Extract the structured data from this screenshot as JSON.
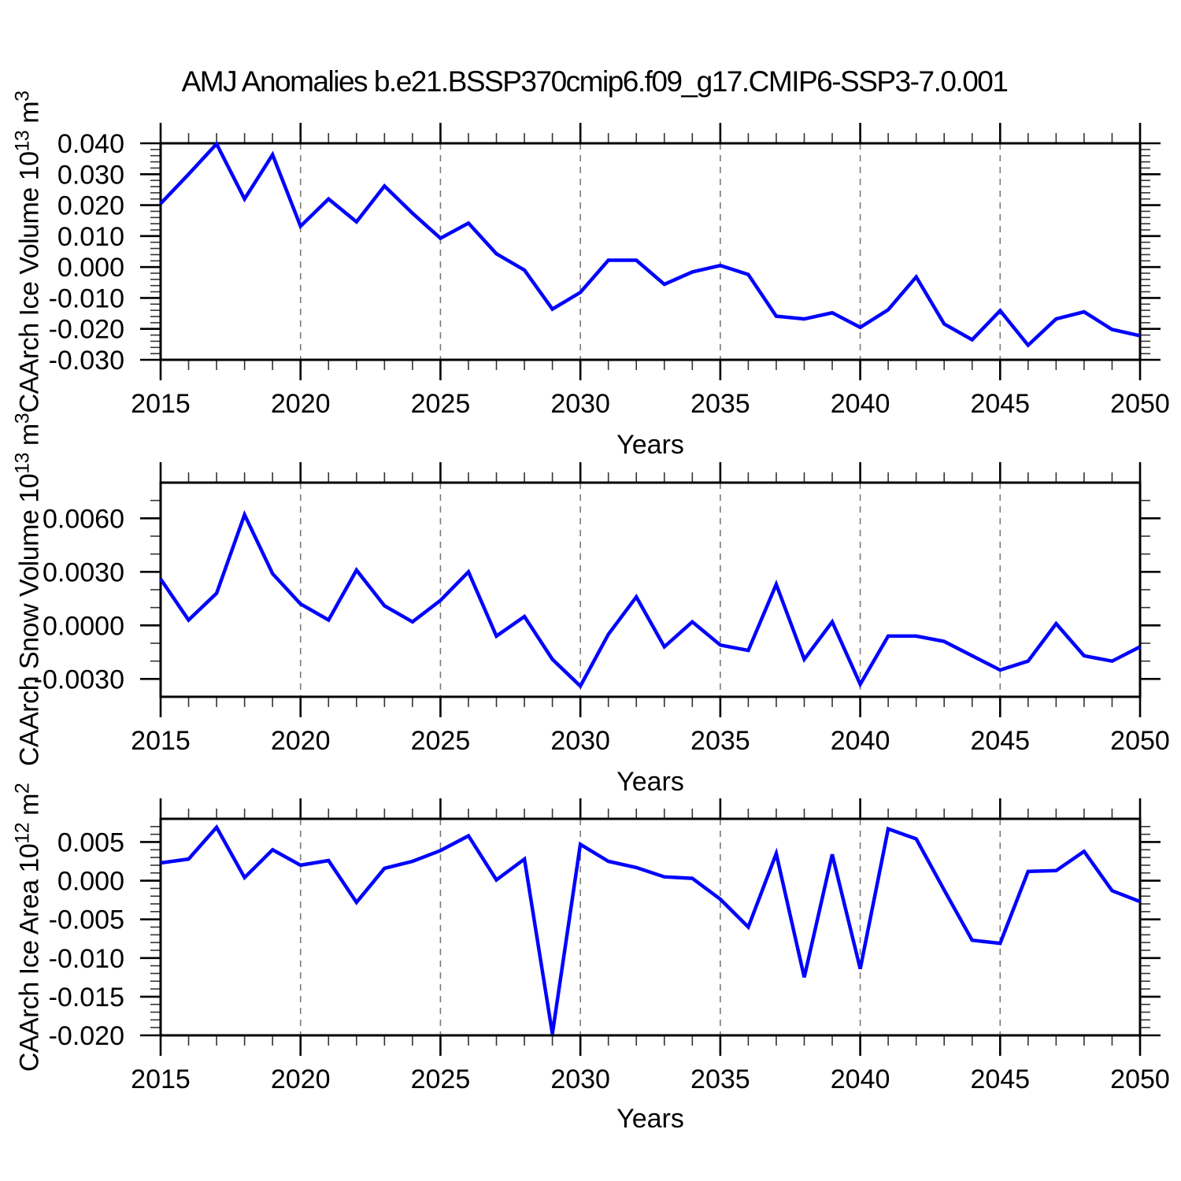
{
  "title": "AMJ Anomalies b.e21.BSSP370cmip6.f09_g17.CMIP6-SSP3-7.0.001",
  "colors": {
    "line": "#0000ff",
    "axis": "#000000",
    "grid": "#7a7a7a",
    "background": "#ffffff",
    "text": "#000000"
  },
  "chart_data": {
    "type": "line",
    "x": [
      2015,
      2016,
      2017,
      2018,
      2019,
      2020,
      2021,
      2022,
      2023,
      2024,
      2025,
      2026,
      2027,
      2028,
      2029,
      2030,
      2031,
      2032,
      2033,
      2034,
      2035,
      2036,
      2037,
      2038,
      2039,
      2040,
      2041,
      2042,
      2043,
      2044,
      2045,
      2046,
      2047,
      2048,
      2049,
      2050
    ],
    "xlim": [
      2015,
      2050
    ],
    "x_tick_labels": [
      "2015",
      "2020",
      "2025",
      "2030",
      "2035",
      "2040",
      "2045",
      "2050"
    ],
    "grid_years": [
      2020,
      2025,
      2030,
      2035,
      2040,
      2045
    ],
    "panels": [
      {
        "name": "ice-volume",
        "xlabel": "Years",
        "ylabel_text": "CAArch Ice Volume 10^13 m^3",
        "ylabel_parts": [
          {
            "t": "CAArch Ice Volume 10"
          },
          {
            "t": "13",
            "sup": true
          },
          {
            "t": " m"
          },
          {
            "t": "3",
            "sup": true
          }
        ],
        "ylim": [
          -0.03,
          0.04
        ],
        "ytick_labels": [
          "0.040",
          "0.030",
          "0.020",
          "0.010",
          "0.000",
          "-0.010",
          "-0.020",
          "-0.030"
        ],
        "ytick_minor_step": 0.002,
        "values": [
          0.0205,
          0.03,
          0.0398,
          0.022,
          0.0363,
          0.0132,
          0.022,
          0.0146,
          0.0262,
          0.0174,
          0.0093,
          0.0142,
          0.0043,
          -0.001,
          -0.0136,
          -0.0082,
          0.0022,
          0.0022,
          -0.0056,
          -0.0016,
          0.0005,
          -0.0024,
          -0.0159,
          -0.0168,
          -0.0148,
          -0.0195,
          -0.0138,
          -0.0032,
          -0.0184,
          -0.0235,
          -0.0141,
          -0.0253,
          -0.0168,
          -0.0145,
          -0.0202,
          -0.0222
        ]
      },
      {
        "name": "snow-volume",
        "xlabel": "Years",
        "ylabel_text": "CAArch Snow Volume 10^13 m^3",
        "ylabel_parts": [
          {
            "t": "CAArch Snow Volume 10"
          },
          {
            "t": "13",
            "sup": true
          },
          {
            "t": " m"
          },
          {
            "t": "3",
            "sup": true
          }
        ],
        "ylim": [
          -0.004,
          0.008
        ],
        "ytick_labels": [
          "0.0060",
          "0.0030",
          "0.0000",
          "-0.0030"
        ],
        "ytick_minor_step": 0.001,
        "values": [
          0.0026,
          0.0003,
          0.0018,
          0.0062,
          0.0029,
          0.0012,
          0.0003,
          0.0031,
          0.0011,
          0.0002,
          0.0014,
          0.003,
          -0.0006,
          0.0005,
          -0.0019,
          -0.0034,
          -0.0005,
          0.0016,
          -0.0012,
          0.0002,
          -0.0011,
          -0.0014,
          0.0023,
          -0.0019,
          0.0002,
          -0.0033,
          -0.0006,
          -0.0006,
          -0.0009,
          -0.0017,
          -0.0025,
          -0.002,
          0.0001,
          -0.0017,
          -0.002,
          -0.0012
        ]
      },
      {
        "name": "ice-area",
        "xlabel": "Years",
        "ylabel_text": "CAArch Ice Area 10^12 m^2",
        "ylabel_parts": [
          {
            "t": "CAArch Ice Area 10"
          },
          {
            "t": "12",
            "sup": true
          },
          {
            "t": " m"
          },
          {
            "t": "2",
            "sup": true
          }
        ],
        "ylim": [
          -0.02,
          0.008
        ],
        "ytick_labels": [
          "0.005",
          "0.000",
          "-0.005",
          "-0.010",
          "-0.015",
          "-0.020"
        ],
        "ytick_minor_step": 0.001,
        "values": [
          0.0023,
          0.0028,
          0.0069,
          0.0004,
          0.004,
          0.002,
          0.0026,
          -0.0028,
          0.0016,
          0.0025,
          0.0039,
          0.0058,
          0.0001,
          0.0028,
          -0.0198,
          0.0047,
          0.0025,
          0.0017,
          0.0005,
          0.0003,
          -0.0024,
          -0.006,
          0.0035,
          -0.0125,
          0.0034,
          -0.0114,
          0.0067,
          0.0054,
          -0.0012,
          -0.0077,
          -0.0081,
          0.0012,
          0.0013,
          0.0038,
          -0.0013,
          -0.0027
        ]
      }
    ]
  }
}
